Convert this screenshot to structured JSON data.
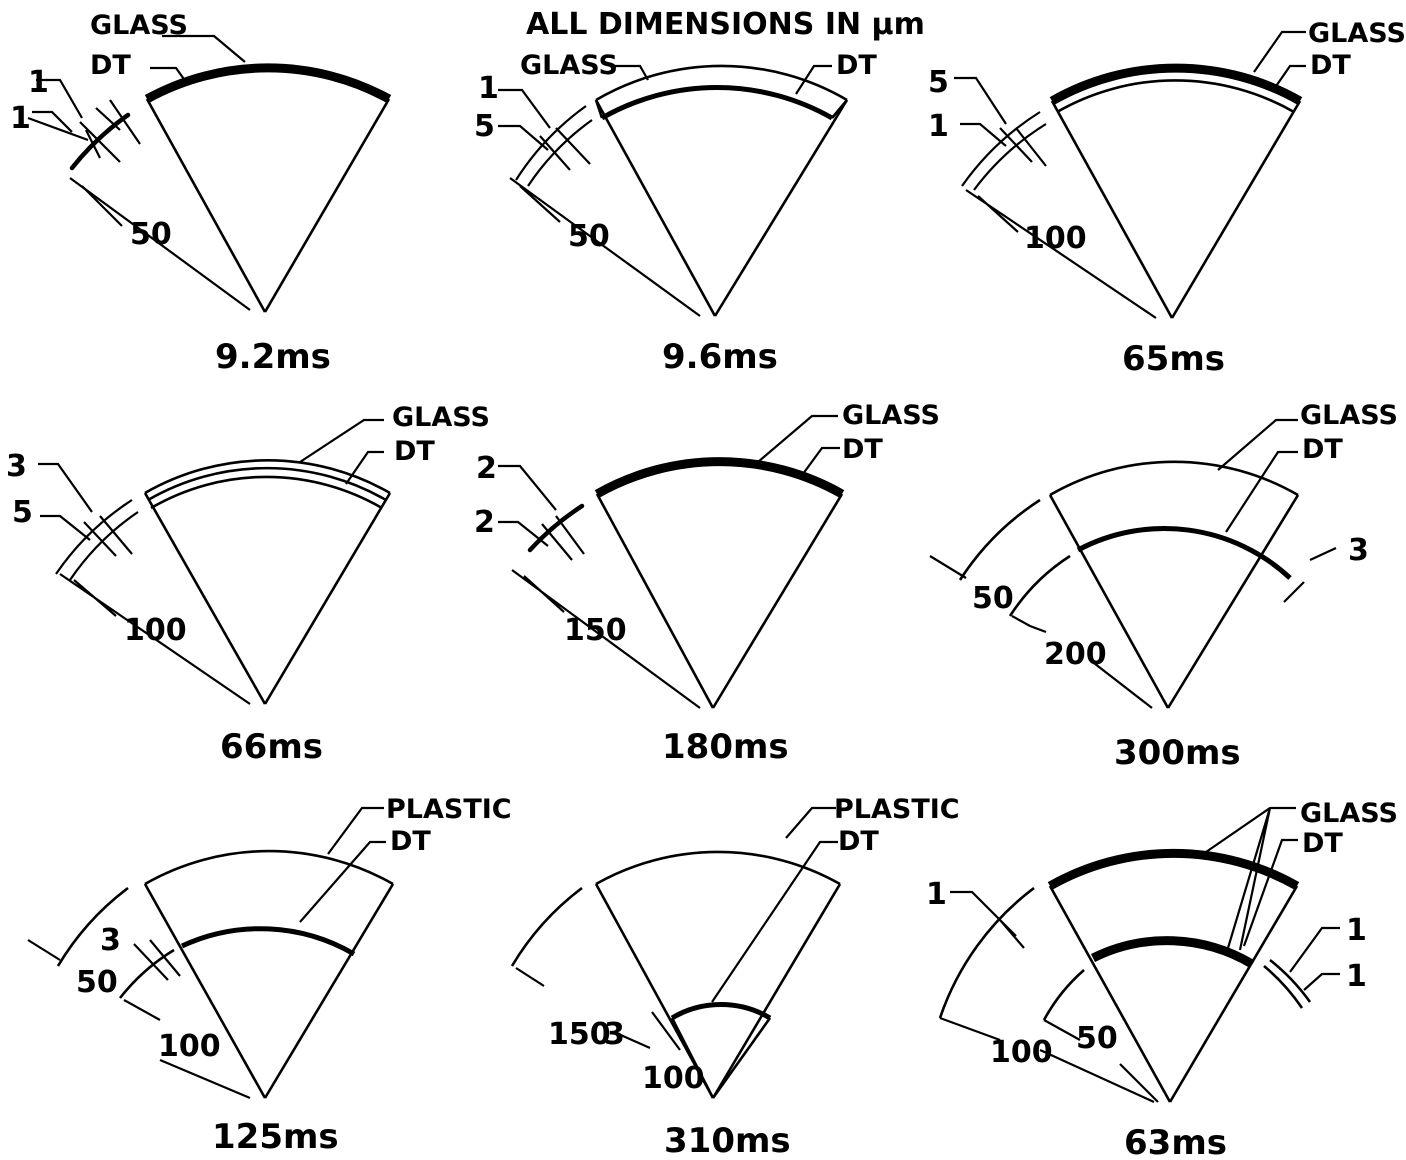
{
  "header": "ALL DIMENSIONS IN μm",
  "labels": {
    "glass": "GLASS",
    "dt": "DT",
    "plastic": "PLASTIC"
  },
  "panels": [
    {
      "time": "9.2ms",
      "outer_material": "GLASS",
      "fuel_layer": "DT",
      "dimensions": [
        "1",
        "1",
        "50"
      ]
    },
    {
      "time": "9.6ms",
      "outer_material": "GLASS",
      "fuel_layer": "DT",
      "dimensions": [
        "1",
        "5",
        "50"
      ]
    },
    {
      "time": "65ms",
      "outer_material": "GLASS",
      "fuel_layer": "DT",
      "dimensions": [
        "5",
        "1",
        "100"
      ]
    },
    {
      "time": "66ms",
      "outer_material": "GLASS",
      "fuel_layer": "DT",
      "dimensions": [
        "3",
        "5",
        "100"
      ]
    },
    {
      "time": "180ms",
      "outer_material": "GLASS",
      "fuel_layer": "DT",
      "dimensions": [
        "2",
        "2",
        "150"
      ]
    },
    {
      "time": "300ms",
      "outer_material": "GLASS",
      "fuel_layer": "DT",
      "dimensions": [
        "3",
        "50",
        "200"
      ]
    },
    {
      "time": "125ms",
      "outer_material": "PLASTIC",
      "fuel_layer": "DT",
      "dimensions": [
        "3",
        "50",
        "100"
      ]
    },
    {
      "time": "310ms",
      "outer_material": "PLASTIC",
      "fuel_layer": "DT",
      "dimensions": [
        "150",
        "3",
        "100"
      ]
    },
    {
      "time": "63ms",
      "outer_material": "GLASS",
      "fuel_layer": "DT",
      "dimensions": [
        "1",
        "1",
        "1",
        "100",
        "50"
      ]
    }
  ]
}
